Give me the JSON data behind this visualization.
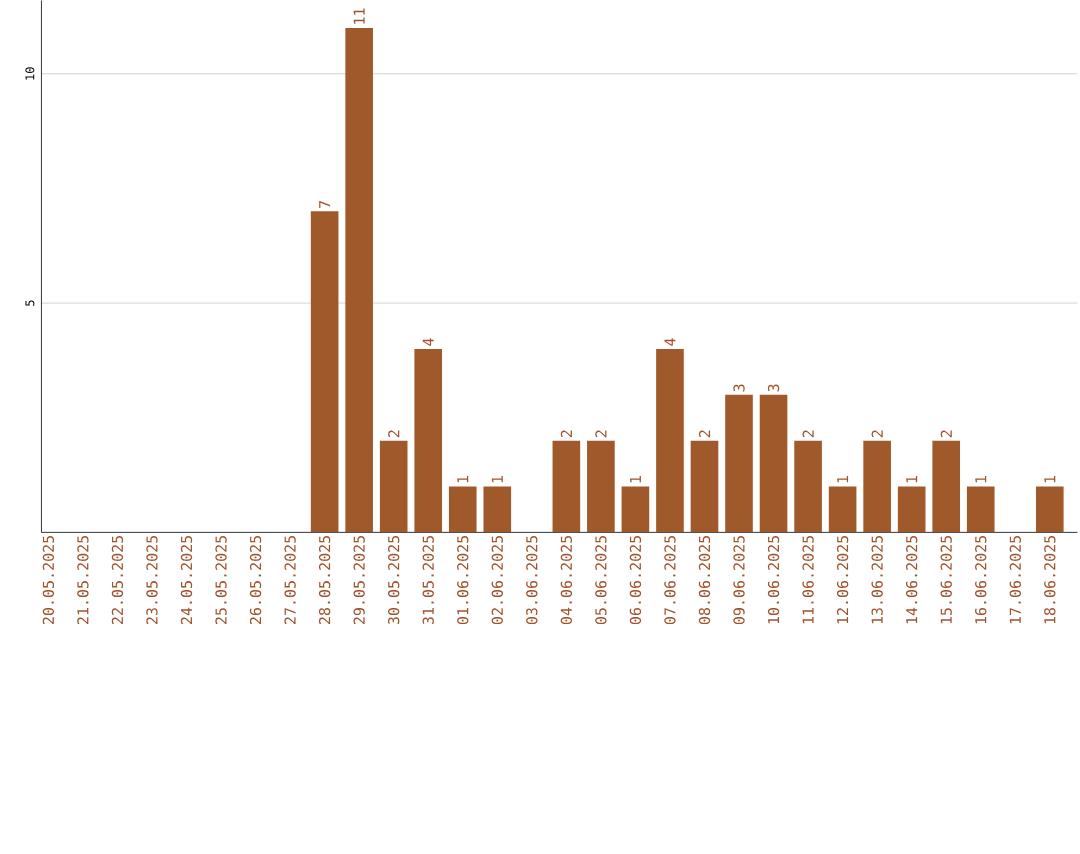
{
  "chart_data": {
    "type": "bar",
    "categories": [
      "20.05.2025",
      "21.05.2025",
      "22.05.2025",
      "23.05.2025",
      "24.05.2025",
      "25.05.2025",
      "26.05.2025",
      "27.05.2025",
      "28.05.2025",
      "29.05.2025",
      "30.05.2025",
      "31.05.2025",
      "01.06.2025",
      "02.06.2025",
      "03.06.2025",
      "04.06.2025",
      "05.06.2025",
      "06.06.2025",
      "07.06.2025",
      "08.06.2025",
      "09.06.2025",
      "10.06.2025",
      "11.06.2025",
      "12.06.2025",
      "13.06.2025",
      "14.06.2025",
      "15.06.2025",
      "16.06.2025",
      "17.06.2025",
      "18.06.2025"
    ],
    "values": [
      0,
      0,
      0,
      0,
      0,
      0,
      0,
      0,
      7,
      11,
      2,
      4,
      1,
      1,
      0,
      2,
      2,
      1,
      4,
      2,
      3,
      3,
      2,
      1,
      2,
      1,
      2,
      1,
      0,
      1
    ],
    "value_labels": [
      null,
      null,
      null,
      null,
      null,
      null,
      null,
      null,
      "7",
      "11",
      "2",
      "4",
      "1",
      "1",
      null,
      "2",
      "2",
      "1",
      "4",
      "2",
      "3",
      "3",
      "2",
      "1",
      "2",
      "1",
      "2",
      "1",
      null,
      "1"
    ],
    "color": "#a0592b",
    "ylim": [
      0,
      11.6
    ],
    "yticks": [
      5,
      10
    ],
    "grid": "y"
  }
}
